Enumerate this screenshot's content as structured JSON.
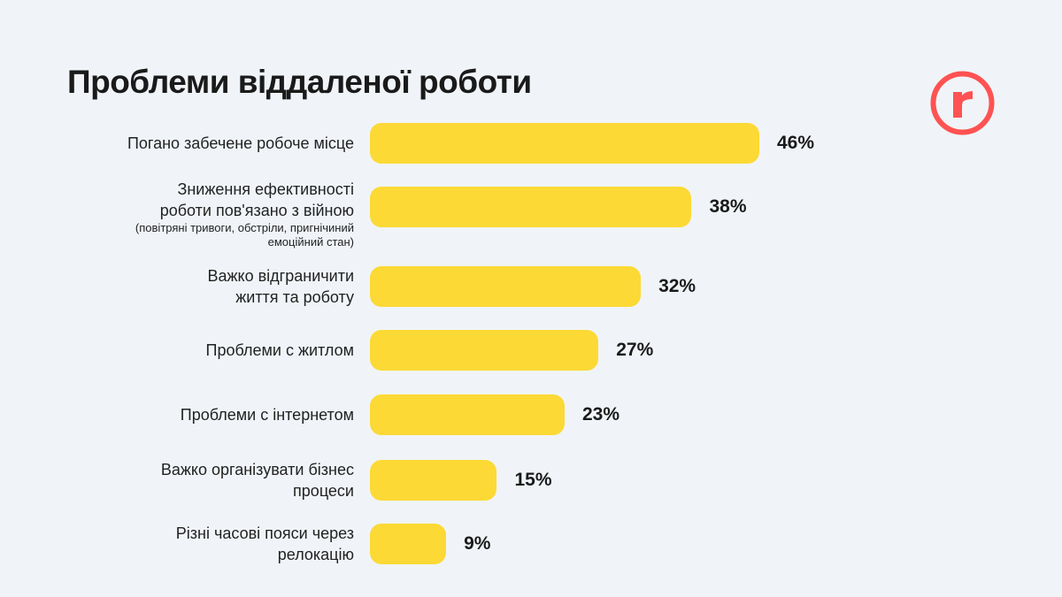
{
  "title": "Проблеми віддаленої роботи",
  "logo": {
    "letter": "r",
    "color": "#ff5252"
  },
  "chart_data": {
    "type": "bar",
    "orientation": "horizontal",
    "title": "Проблеми віддаленої роботи",
    "bar_color": "#fcd935",
    "categories": [
      {
        "lines": [
          "Погано забечене робоче місце"
        ],
        "note": []
      },
      {
        "lines": [
          "Зниження ефективності",
          "роботи пов'язано з війною"
        ],
        "note": [
          "(повітряні тривоги, обстріли, пригнічиний",
          "емоційний стан)"
        ]
      },
      {
        "lines": [
          "Важко відграничити",
          "життя та роботу"
        ],
        "note": []
      },
      {
        "lines": [
          "Проблеми с житлом"
        ],
        "note": []
      },
      {
        "lines": [
          "Проблеми с інтернетом"
        ],
        "note": []
      },
      {
        "lines": [
          "Важко організувати бізнес",
          "процеси"
        ],
        "note": []
      },
      {
        "lines": [
          "Різні часові пояси через",
          "релокацію"
        ],
        "note": []
      }
    ],
    "values": [
      46,
      38,
      32,
      27,
      23,
      15,
      9
    ],
    "value_labels": [
      "46%",
      "38%",
      "32%",
      "27%",
      "23%",
      "15%",
      "9%"
    ],
    "grid": false,
    "legend": "none"
  }
}
